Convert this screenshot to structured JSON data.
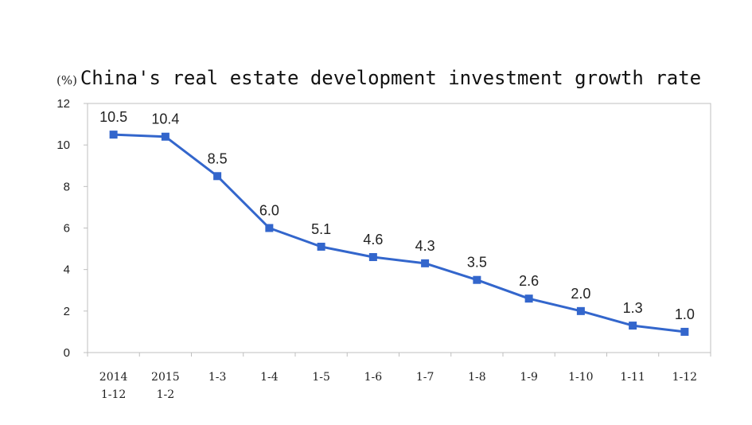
{
  "chart_data": {
    "type": "line",
    "title": "China's real estate development investment growth rate",
    "unit_label": "(%)",
    "xlabel": "",
    "ylabel": "",
    "ylim": [
      0,
      12
    ],
    "yticks": [
      0,
      2,
      4,
      6,
      8,
      10,
      12
    ],
    "grid": false,
    "legend": "none",
    "categories": [
      [
        "2014",
        "1-12"
      ],
      [
        "2015",
        "1-2"
      ],
      [
        "1-3"
      ],
      [
        "1-4"
      ],
      [
        "1-5"
      ],
      [
        "1-6"
      ],
      [
        "1-7"
      ],
      [
        "1-8"
      ],
      [
        "1-9"
      ],
      [
        "1-10"
      ],
      [
        "1-11"
      ],
      [
        "1-12"
      ]
    ],
    "series": [
      {
        "values": [
          10.5,
          10.4,
          8.5,
          6.0,
          5.1,
          4.6,
          4.3,
          3.5,
          2.6,
          2.0,
          1.3,
          1.0
        ],
        "data_labels": [
          "10.5",
          "10.4",
          "8.5",
          "6.0",
          "5.1",
          "4.6",
          "4.3",
          "3.5",
          "2.6",
          "2.0",
          "1.3",
          "1.0"
        ],
        "color": "#3366cc",
        "marker": "square"
      }
    ],
    "colors": {
      "line": "#3366cc",
      "frame": "#bfbfbf",
      "text": "#222222"
    }
  }
}
